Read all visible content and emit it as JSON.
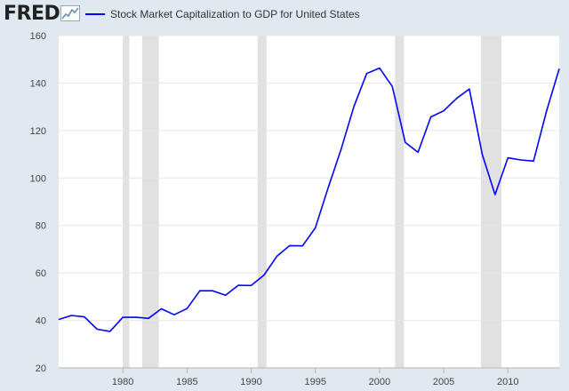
{
  "header": {
    "logo_text": "FRED",
    "logo_icon": "line-chart-icon",
    "legend_label": "Stock Market Capitalization to GDP for United States"
  },
  "colors": {
    "series": "#0000ff",
    "recession": "#e1e1e1",
    "plot_background": "#ffffff",
    "page_background": "#e1e9f0",
    "gridline": "#e6e6e6"
  },
  "chart_data": {
    "type": "line",
    "title": "",
    "xlabel": "",
    "ylabel": "",
    "xlim": [
      1975,
      2014
    ],
    "ylim": [
      20,
      160
    ],
    "yticks": [
      20,
      40,
      60,
      80,
      100,
      120,
      140,
      160
    ],
    "xticks": [
      1980,
      1985,
      1990,
      1995,
      2000,
      2005,
      2010
    ],
    "grid": "horizontal",
    "legend": "top-left",
    "series": [
      {
        "name": "Stock Market Capitalization to GDP for United States",
        "x": [
          1975,
          1976,
          1977,
          1978,
          1979,
          1980,
          1981,
          1982,
          1983,
          1984,
          1985,
          1986,
          1987,
          1988,
          1989,
          1990,
          1991,
          1992,
          1993,
          1994,
          1995,
          1996,
          1997,
          1998,
          1999,
          2000,
          2001,
          2002,
          2003,
          2004,
          2005,
          2006,
          2007,
          2008,
          2009,
          2010,
          2011,
          2012,
          2013,
          2014
        ],
        "y": [
          40.4,
          42.1,
          41.5,
          36.3,
          35.4,
          41.3,
          41.3,
          40.9,
          44.9,
          42.4,
          45.0,
          52.5,
          52.5,
          50.6,
          54.8,
          54.7,
          59.1,
          67.0,
          71.5,
          71.4,
          79.0,
          96.0,
          112.0,
          130.0,
          144.0,
          146.3,
          138.5,
          115.0,
          110.8,
          125.7,
          128.3,
          133.5,
          137.5,
          110.0,
          93.0,
          108.5,
          107.6,
          107.1,
          128.0,
          146.0
        ]
      }
    ],
    "recessions": [
      [
        1980.0,
        1980.5
      ],
      [
        1981.5,
        1982.8
      ],
      [
        1990.5,
        1991.2
      ],
      [
        2001.2,
        2001.9
      ],
      [
        2007.9,
        2009.5
      ]
    ]
  }
}
